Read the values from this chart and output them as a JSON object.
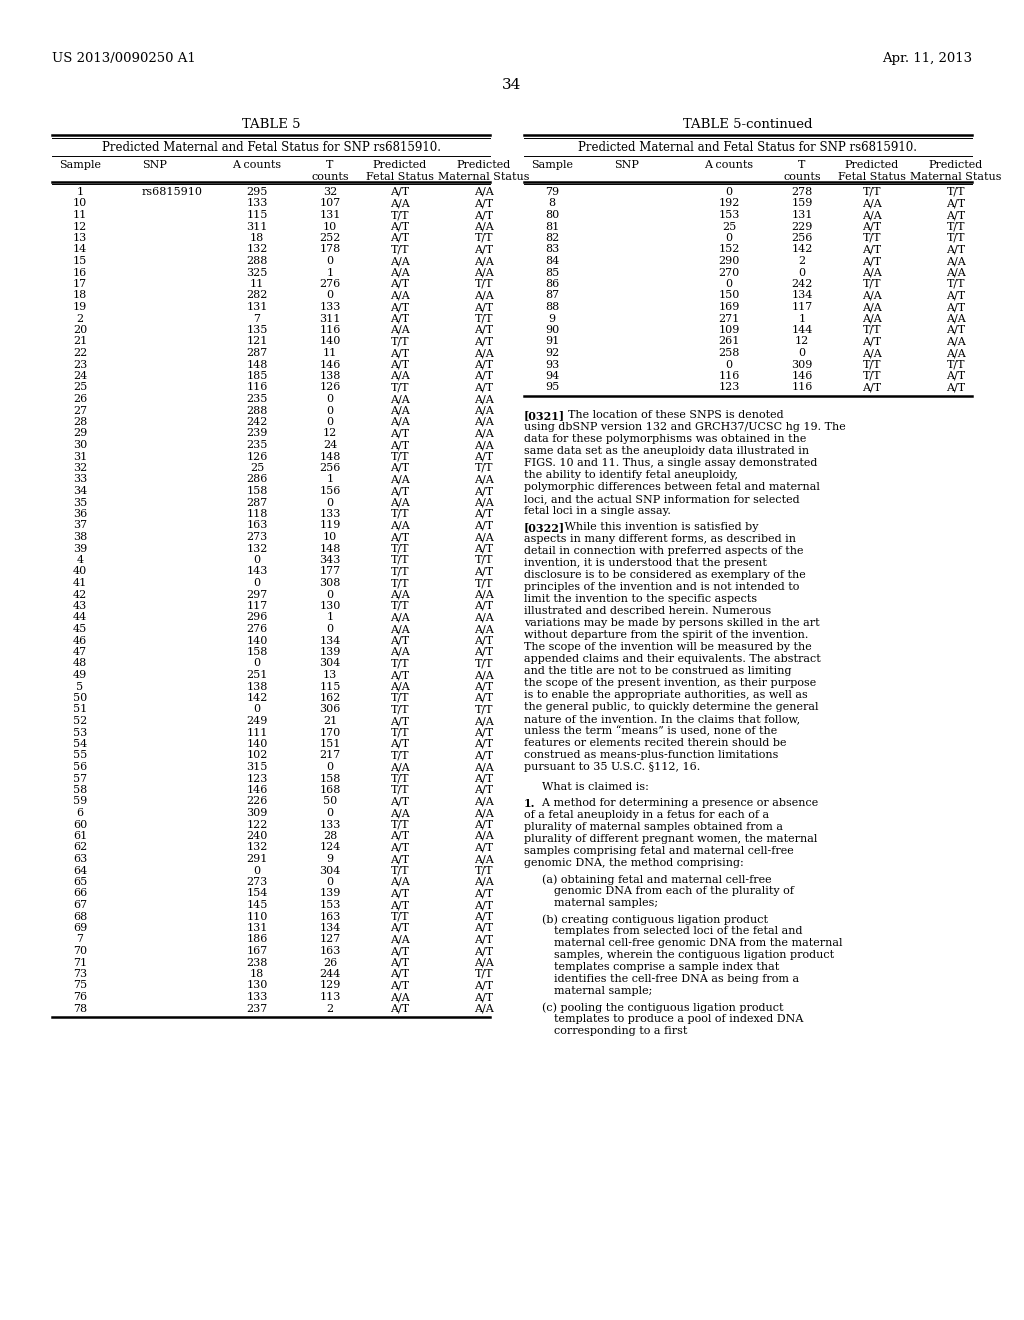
{
  "header_left": "US 2013/0090250 A1",
  "header_right": "Apr. 11, 2013",
  "page_number": "34",
  "table5_title": "TABLE 5",
  "table5cont_title": "TABLE 5-continued",
  "table_subtitle": "Predicted Maternal and Fetal Status for SNP rs6815910.",
  "left_table_data": [
    [
      "1",
      "rs6815910",
      "295",
      "32",
      "A/T",
      "A/A"
    ],
    [
      "10",
      "",
      "133",
      "107",
      "A/A",
      "A/T"
    ],
    [
      "11",
      "",
      "115",
      "131",
      "T/T",
      "A/T"
    ],
    [
      "12",
      "",
      "311",
      "10",
      "A/T",
      "A/A"
    ],
    [
      "13",
      "",
      "18",
      "252",
      "A/T",
      "T/T"
    ],
    [
      "14",
      "",
      "132",
      "178",
      "T/T",
      "A/T"
    ],
    [
      "15",
      "",
      "288",
      "0",
      "A/A",
      "A/A"
    ],
    [
      "16",
      "",
      "325",
      "1",
      "A/A",
      "A/A"
    ],
    [
      "17",
      "",
      "11",
      "276",
      "A/T",
      "T/T"
    ],
    [
      "18",
      "",
      "282",
      "0",
      "A/A",
      "A/A"
    ],
    [
      "19",
      "",
      "131",
      "133",
      "A/T",
      "A/T"
    ],
    [
      "2",
      "",
      "7",
      "311",
      "A/T",
      "T/T"
    ],
    [
      "20",
      "",
      "135",
      "116",
      "A/A",
      "A/T"
    ],
    [
      "21",
      "",
      "121",
      "140",
      "T/T",
      "A/T"
    ],
    [
      "22",
      "",
      "287",
      "11",
      "A/T",
      "A/A"
    ],
    [
      "23",
      "",
      "148",
      "146",
      "A/T",
      "A/T"
    ],
    [
      "24",
      "",
      "185",
      "138",
      "A/A",
      "A/T"
    ],
    [
      "25",
      "",
      "116",
      "126",
      "T/T",
      "A/T"
    ],
    [
      "26",
      "",
      "235",
      "0",
      "A/A",
      "A/A"
    ],
    [
      "27",
      "",
      "288",
      "0",
      "A/A",
      "A/A"
    ],
    [
      "28",
      "",
      "242",
      "0",
      "A/A",
      "A/A"
    ],
    [
      "29",
      "",
      "239",
      "12",
      "A/T",
      "A/A"
    ],
    [
      "30",
      "",
      "235",
      "24",
      "A/T",
      "A/A"
    ],
    [
      "31",
      "",
      "126",
      "148",
      "T/T",
      "A/T"
    ],
    [
      "32",
      "",
      "25",
      "256",
      "A/T",
      "T/T"
    ],
    [
      "33",
      "",
      "286",
      "1",
      "A/A",
      "A/A"
    ],
    [
      "34",
      "",
      "158",
      "156",
      "A/T",
      "A/T"
    ],
    [
      "35",
      "",
      "287",
      "0",
      "A/A",
      "A/A"
    ],
    [
      "36",
      "",
      "118",
      "133",
      "T/T",
      "A/T"
    ],
    [
      "37",
      "",
      "163",
      "119",
      "A/A",
      "A/T"
    ],
    [
      "38",
      "",
      "273",
      "10",
      "A/T",
      "A/A"
    ],
    [
      "39",
      "",
      "132",
      "148",
      "T/T",
      "A/T"
    ],
    [
      "4",
      "",
      "0",
      "343",
      "T/T",
      "T/T"
    ],
    [
      "40",
      "",
      "143",
      "177",
      "T/T",
      "A/T"
    ],
    [
      "41",
      "",
      "0",
      "308",
      "T/T",
      "T/T"
    ],
    [
      "42",
      "",
      "297",
      "0",
      "A/A",
      "A/A"
    ],
    [
      "43",
      "",
      "117",
      "130",
      "T/T",
      "A/T"
    ],
    [
      "44",
      "",
      "296",
      "1",
      "A/A",
      "A/A"
    ],
    [
      "45",
      "",
      "276",
      "0",
      "A/A",
      "A/A"
    ],
    [
      "46",
      "",
      "140",
      "134",
      "A/T",
      "A/T"
    ],
    [
      "47",
      "",
      "158",
      "139",
      "A/A",
      "A/T"
    ],
    [
      "48",
      "",
      "0",
      "304",
      "T/T",
      "T/T"
    ],
    [
      "49",
      "",
      "251",
      "13",
      "A/T",
      "A/A"
    ],
    [
      "5",
      "",
      "138",
      "115",
      "A/A",
      "A/T"
    ],
    [
      "50",
      "",
      "142",
      "162",
      "T/T",
      "A/T"
    ],
    [
      "51",
      "",
      "0",
      "306",
      "T/T",
      "T/T"
    ],
    [
      "52",
      "",
      "249",
      "21",
      "A/T",
      "A/A"
    ],
    [
      "53",
      "",
      "111",
      "170",
      "T/T",
      "A/T"
    ],
    [
      "54",
      "",
      "140",
      "151",
      "A/T",
      "A/T"
    ],
    [
      "55",
      "",
      "102",
      "217",
      "T/T",
      "A/T"
    ],
    [
      "56",
      "",
      "315",
      "0",
      "A/A",
      "A/A"
    ],
    [
      "57",
      "",
      "123",
      "158",
      "T/T",
      "A/T"
    ],
    [
      "58",
      "",
      "146",
      "168",
      "T/T",
      "A/T"
    ],
    [
      "59",
      "",
      "226",
      "50",
      "A/T",
      "A/A"
    ],
    [
      "6",
      "",
      "309",
      "0",
      "A/A",
      "A/A"
    ],
    [
      "60",
      "",
      "122",
      "133",
      "T/T",
      "A/T"
    ],
    [
      "61",
      "",
      "240",
      "28",
      "A/T",
      "A/A"
    ],
    [
      "62",
      "",
      "132",
      "124",
      "A/T",
      "A/T"
    ],
    [
      "63",
      "",
      "291",
      "9",
      "A/T",
      "A/A"
    ],
    [
      "64",
      "",
      "0",
      "304",
      "T/T",
      "T/T"
    ],
    [
      "65",
      "",
      "273",
      "0",
      "A/A",
      "A/A"
    ],
    [
      "66",
      "",
      "154",
      "139",
      "A/T",
      "A/T"
    ],
    [
      "67",
      "",
      "145",
      "153",
      "A/T",
      "A/T"
    ],
    [
      "68",
      "",
      "110",
      "163",
      "T/T",
      "A/T"
    ],
    [
      "69",
      "",
      "131",
      "134",
      "A/T",
      "A/T"
    ],
    [
      "7",
      "",
      "186",
      "127",
      "A/A",
      "A/T"
    ],
    [
      "70",
      "",
      "167",
      "163",
      "A/T",
      "A/T"
    ],
    [
      "71",
      "",
      "238",
      "26",
      "A/T",
      "A/A"
    ],
    [
      "73",
      "",
      "18",
      "244",
      "A/T",
      "T/T"
    ],
    [
      "75",
      "",
      "130",
      "129",
      "A/T",
      "A/T"
    ],
    [
      "76",
      "",
      "133",
      "113",
      "A/A",
      "A/T"
    ],
    [
      "78",
      "",
      "237",
      "2",
      "A/T",
      "A/A"
    ]
  ],
  "right_table_data": [
    [
      "79",
      "",
      "0",
      "278",
      "T/T",
      "T/T"
    ],
    [
      "8",
      "",
      "192",
      "159",
      "A/A",
      "A/T"
    ],
    [
      "80",
      "",
      "153",
      "131",
      "A/A",
      "A/T"
    ],
    [
      "81",
      "",
      "25",
      "229",
      "A/T",
      "T/T"
    ],
    [
      "82",
      "",
      "0",
      "256",
      "T/T",
      "T/T"
    ],
    [
      "83",
      "",
      "152",
      "142",
      "A/T",
      "A/T"
    ],
    [
      "84",
      "",
      "290",
      "2",
      "A/T",
      "A/A"
    ],
    [
      "85",
      "",
      "270",
      "0",
      "A/A",
      "A/A"
    ],
    [
      "86",
      "",
      "0",
      "242",
      "T/T",
      "T/T"
    ],
    [
      "87",
      "",
      "150",
      "134",
      "A/A",
      "A/T"
    ],
    [
      "88",
      "",
      "169",
      "117",
      "A/A",
      "A/T"
    ],
    [
      "9",
      "",
      "271",
      "1",
      "A/A",
      "A/A"
    ],
    [
      "90",
      "",
      "109",
      "144",
      "T/T",
      "A/T"
    ],
    [
      "91",
      "",
      "261",
      "12",
      "A/T",
      "A/A"
    ],
    [
      "92",
      "",
      "258",
      "0",
      "A/A",
      "A/A"
    ],
    [
      "93",
      "",
      "0",
      "309",
      "T/T",
      "T/T"
    ],
    [
      "94",
      "",
      "116",
      "146",
      "T/T",
      "A/T"
    ],
    [
      "95",
      "",
      "123",
      "116",
      "A/T",
      "A/T"
    ]
  ],
  "para321_prefix": "[0321]",
  "para321_body": "    The location of these SNPS is denoted using dbSNP version 132 and GRCH37/UCSC hg 19. The data for these polymorphisms was obtained in the same data set as the aneuploidy data illustrated in FIGS. 10 and 11. Thus, a single assay demonstrated the ability to identify fetal aneuploidy, polymorphic differences between fetal and maternal loci, and the actual SNP information for selected fetal loci in a single assay.",
  "para322_prefix": "[0322]",
  "para322_body": "   While this invention is satisfied by aspects in many different forms, as described in detail in connection with preferred aspects of the invention, it is understood that the present disclosure is to be considered as exemplary of the principles of the invention and is not intended to limit the invention to the specific aspects illustrated and described herein. Numerous variations may be made by persons skilled in the art without departure from the spirit of the invention. The scope of the invention will be measured by the appended claims and their equivalents. The abstract and the title are not to be construed as limiting the scope of the present invention, as their purpose is to enable the appropriate authorities, as well as the general public, to quickly determine the general nature of the invention. In the claims that follow, unless the term “means” is used, none of the features or elements recited therein should be construed as means-plus-function limitations pursuant to 35 U.S.C. §112, 16.",
  "claims_header": "What is claimed is:",
  "claim_1_num": "1.",
  "claim_1_body": "  A method for determining a presence or absence of a fetal aneuploidy in a fetus for each of a plurality of maternal samples obtained from a plurality of different pregnant women, the maternal samples comprising fetal and maternal cell-free genomic DNA, the method comprising:",
  "claim_a": "(a) obtaining fetal and maternal cell-free genomic DNA from each of the plurality of maternal samples;",
  "claim_b": "(b) creating contiguous ligation product templates from selected loci of the fetal and maternal cell-free genomic DNA from the maternal samples, wherein the contiguous ligation product templates comprise a sample index that identifies the cell-free DNA as being from a maternal sample;",
  "claim_c": "(c) pooling the contiguous ligation product templates to produce a pool of indexed DNA corresponding to a first"
}
